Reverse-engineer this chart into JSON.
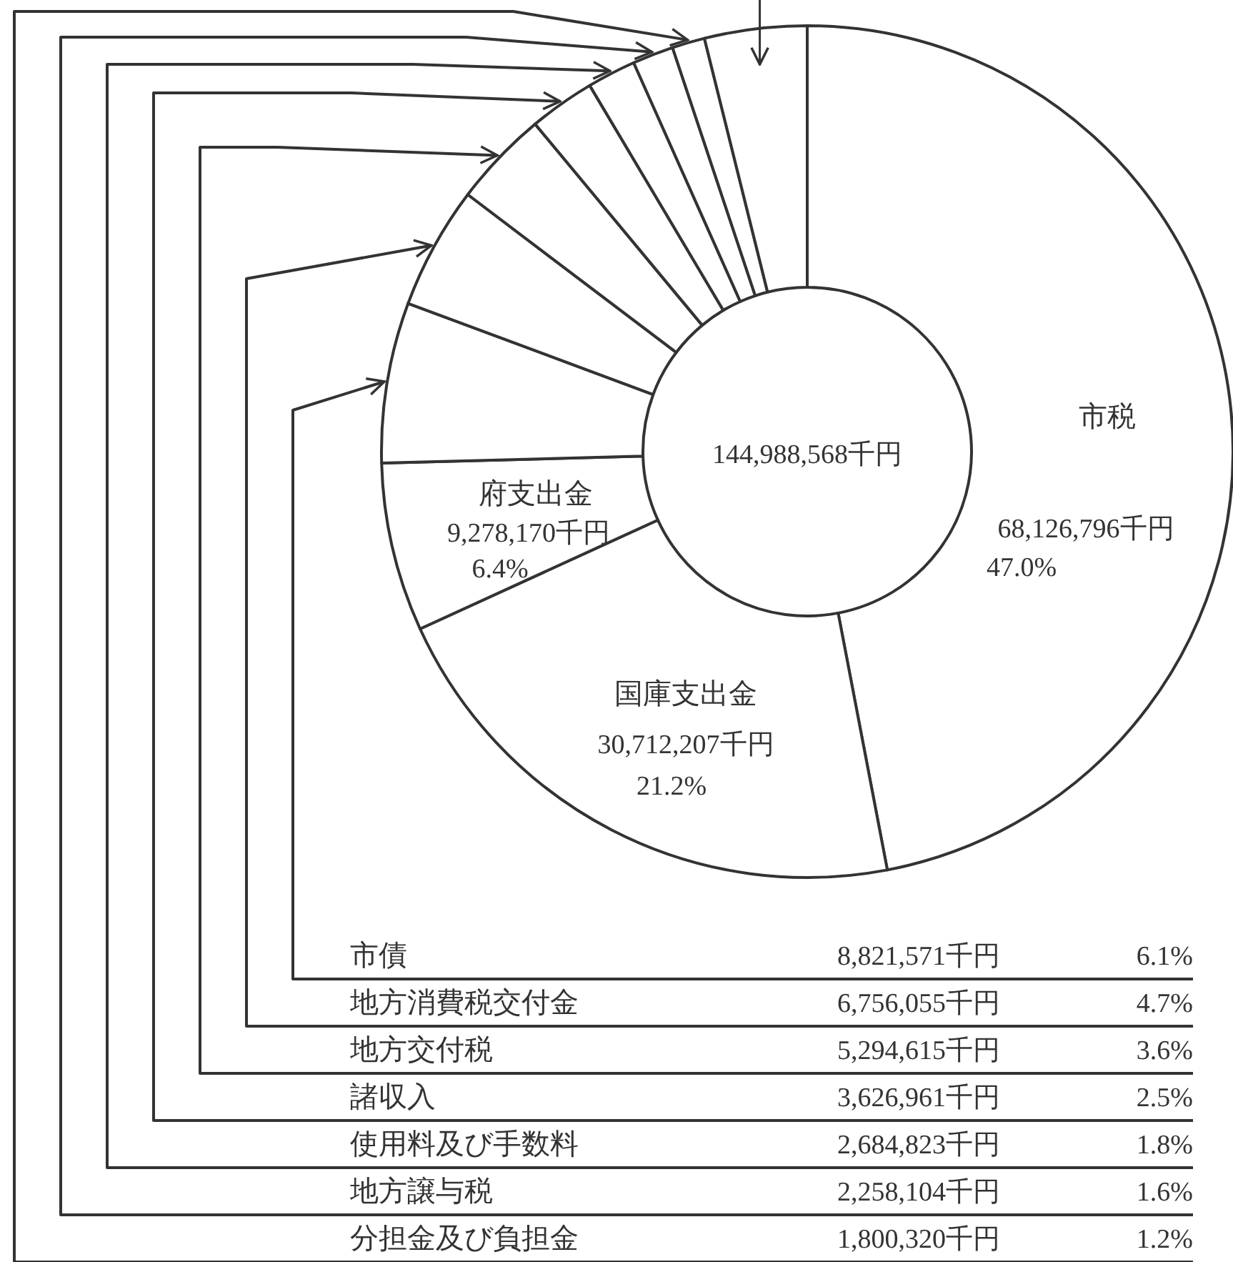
{
  "chart_data": {
    "type": "donut",
    "categories": [
      "市税",
      "国庫支出金",
      "府支出金",
      "市債",
      "地方消費税交付金",
      "地方交付税",
      "諸収入",
      "使用料及び手数料",
      "地方譲与税",
      "分担金及び負担金",
      null
    ],
    "values": [
      68126796,
      30712207,
      9278170,
      8821571,
      6756055,
      5294615,
      3626961,
      2684823,
      2258104,
      1800320,
      5628946
    ],
    "value_labels": [
      "68,126,796千円",
      "30,712,207千円",
      "9,278,170千円",
      "8,821,571千円",
      "6,756,055千円",
      "5,294,615千円",
      "3,626,961千円",
      "2,684,823千円",
      "2,258,104千円",
      "1,800,320千円",
      null
    ],
    "colors": [
      "#ffffff",
      "#ffffff",
      "#ffffff",
      "#ffffff",
      "#ffffff",
      "#ffffff",
      "#ffffff",
      "#ffffff",
      "#ffffff",
      "#ffffff",
      "#ffffff"
    ],
    "annotations": [
      "144,988,568千円",
      {
        "text": "47.0%",
        "x": "市税"
      },
      {
        "text": "21.2%",
        "x": "国庫支出金"
      },
      {
        "text": "6.4%",
        "x": "府支出金"
      },
      {
        "text": "6.1%",
        "x": "市債"
      },
      {
        "text": "4.7%",
        "x": "地方消費税交付金"
      },
      {
        "text": "3.6%",
        "x": "地方交付税"
      },
      {
        "text": "2.5%",
        "x": "諸収入"
      },
      {
        "text": "1.8%",
        "x": "使用料及び手数料"
      },
      {
        "text": "1.6%",
        "x": "地方譲与税"
      },
      {
        "text": "1.2%",
        "x": "分担金及び負担金"
      }
    ]
  }
}
